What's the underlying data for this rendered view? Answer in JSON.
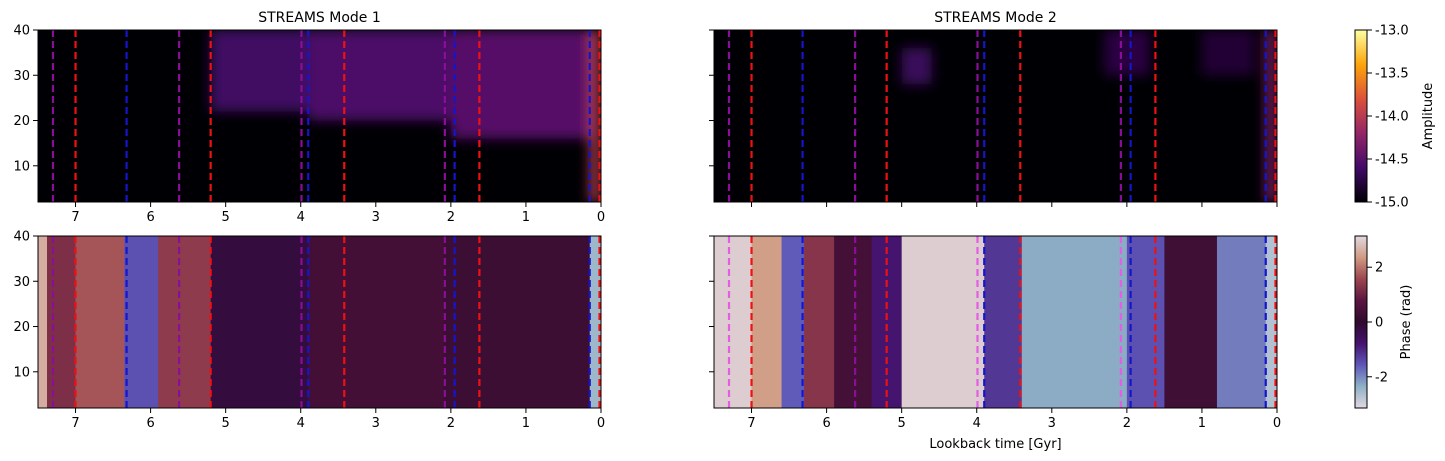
{
  "figure": {
    "xlabel": "Lookback time [Gyr]"
  },
  "colorbars": {
    "amplitude": {
      "label": "Amplitude",
      "ticks": [
        "-13.0",
        "-13.5",
        "-14.0",
        "-14.5",
        "-15.0"
      ],
      "range": [
        -15.0,
        -13.0
      ],
      "colormap": [
        "#000004",
        "#420a68",
        "#932667",
        "#dd513a",
        "#fca50a",
        "#fcffa4"
      ]
    },
    "phase": {
      "label": "Phase (rad)",
      "ticks": [
        "2",
        "0",
        "-2"
      ],
      "range": [
        -3.14,
        3.14
      ],
      "colormap": [
        "#e1d8e1",
        "#8fb1c6",
        "#5e57b8",
        "#45136e",
        "#2f0a2e",
        "#5b1640",
        "#9c4650",
        "#d09a83",
        "#e1d8e1"
      ]
    }
  },
  "event_colors": {
    "red": "#ee1111",
    "blue": "#1515cc",
    "purple": "#8a0e98",
    "violet": "#e45ee4"
  },
  "chart_data": [
    {
      "panel": "amplitude-mode-1",
      "type": "heatmap",
      "title": "STREAMS Mode 1",
      "xlabel": "",
      "ylabel": "",
      "xlim": [
        7.5,
        0
      ],
      "ylim": [
        2,
        40
      ],
      "xticks": [
        "7",
        "6",
        "5",
        "4",
        "3",
        "2",
        "1",
        "0"
      ],
      "yticks": [
        "40",
        "30",
        "20",
        "10"
      ],
      "xticklabels_visible": true,
      "yticklabels_visible": true,
      "quantity": "amplitude",
      "background_level": -15.0,
      "features": [
        {
          "x": [
            5.2,
            3.9
          ],
          "y": [
            22,
            40
          ],
          "level": -14.62
        },
        {
          "x": [
            3.9,
            2.0
          ],
          "y": [
            20,
            40
          ],
          "level": -14.55
        },
        {
          "x": [
            2.0,
            0.15
          ],
          "y": [
            16,
            40
          ],
          "level": -14.5
        },
        {
          "x": [
            0.15,
            0.02
          ],
          "y": [
            2,
            40
          ],
          "level": -14.0
        }
      ],
      "vlines": [
        {
          "x": 7.3,
          "color": "purple"
        },
        {
          "x": 7.0,
          "color": "red"
        },
        {
          "x": 6.32,
          "color": "blue"
        },
        {
          "x": 5.62,
          "color": "purple"
        },
        {
          "x": 5.2,
          "color": "red"
        },
        {
          "x": 3.99,
          "color": "purple"
        },
        {
          "x": 3.9,
          "color": "blue"
        },
        {
          "x": 3.42,
          "color": "red"
        },
        {
          "x": 2.08,
          "color": "purple"
        },
        {
          "x": 1.95,
          "color": "blue"
        },
        {
          "x": 1.62,
          "color": "red"
        },
        {
          "x": 0.15,
          "color": "blue"
        },
        {
          "x": 0.02,
          "color": "red"
        }
      ]
    },
    {
      "panel": "amplitude-mode-2",
      "type": "heatmap",
      "title": "STREAMS Mode 2",
      "xlabel": "",
      "ylabel": "",
      "xlim": [
        7.5,
        0
      ],
      "ylim": [
        2,
        40
      ],
      "xticks": [
        "7",
        "6",
        "5",
        "4",
        "3",
        "2",
        "1",
        "0"
      ],
      "yticks": [
        "40",
        "30",
        "20",
        "10"
      ],
      "xticklabels_visible": false,
      "yticklabels_visible": false,
      "quantity": "amplitude",
      "background_level": -15.0,
      "features": [
        {
          "x": [
            5.0,
            4.6
          ],
          "y": [
            28,
            36
          ],
          "level": -14.65
        },
        {
          "x": [
            2.3,
            1.7
          ],
          "y": [
            30,
            40
          ],
          "level": -14.75
        },
        {
          "x": [
            1.0,
            0.3
          ],
          "y": [
            30,
            40
          ],
          "level": -14.8
        },
        {
          "x": [
            0.15,
            0.02
          ],
          "y": [
            2,
            40
          ],
          "level": -14.3
        }
      ],
      "vlines": [
        {
          "x": 7.3,
          "color": "purple"
        },
        {
          "x": 7.0,
          "color": "red"
        },
        {
          "x": 6.32,
          "color": "blue"
        },
        {
          "x": 5.62,
          "color": "purple"
        },
        {
          "x": 5.2,
          "color": "red"
        },
        {
          "x": 3.99,
          "color": "purple"
        },
        {
          "x": 3.9,
          "color": "blue"
        },
        {
          "x": 3.42,
          "color": "red"
        },
        {
          "x": 2.08,
          "color": "purple"
        },
        {
          "x": 1.95,
          "color": "blue"
        },
        {
          "x": 1.62,
          "color": "red"
        },
        {
          "x": 0.15,
          "color": "blue"
        },
        {
          "x": 0.02,
          "color": "red"
        }
      ]
    },
    {
      "panel": "phase-mode-1",
      "type": "heatmap",
      "title": "",
      "xlabel": "",
      "ylabel": "",
      "xlim": [
        7.5,
        0
      ],
      "ylim": [
        2,
        40
      ],
      "xticks": [
        "7",
        "6",
        "5",
        "4",
        "3",
        "2",
        "1",
        "0"
      ],
      "yticks": [
        "40",
        "30",
        "20",
        "10"
      ],
      "xticklabels_visible": true,
      "yticklabels_visible": true,
      "quantity": "phase",
      "phase_bands": [
        {
          "x": [
            7.5,
            7.38
          ],
          "phase": 2.6
        },
        {
          "x": [
            7.38,
            7.0
          ],
          "phase": 1.2
        },
        {
          "x": [
            7.0,
            6.35
          ],
          "phase": 1.7
        },
        {
          "x": [
            6.35,
            5.9
          ],
          "phase": -1.5
        },
        {
          "x": [
            5.9,
            5.2
          ],
          "phase": 1.4
        },
        {
          "x": [
            5.2,
            3.9
          ],
          "phase": -0.2
        },
        {
          "x": [
            3.9,
            2.1
          ],
          "phase": 0.35
        },
        {
          "x": [
            2.1,
            0.15
          ],
          "phase": 0.25
        },
        {
          "x": [
            0.15,
            0.0
          ],
          "phase": -2.5
        }
      ],
      "vlines": [
        {
          "x": 7.3,
          "color": "purple"
        },
        {
          "x": 7.0,
          "color": "red"
        },
        {
          "x": 6.32,
          "color": "blue"
        },
        {
          "x": 5.62,
          "color": "purple"
        },
        {
          "x": 5.2,
          "color": "red"
        },
        {
          "x": 3.99,
          "color": "purple"
        },
        {
          "x": 3.9,
          "color": "blue"
        },
        {
          "x": 3.42,
          "color": "red"
        },
        {
          "x": 2.08,
          "color": "purple"
        },
        {
          "x": 1.95,
          "color": "blue"
        },
        {
          "x": 1.62,
          "color": "red"
        },
        {
          "x": 0.15,
          "color": "blue"
        },
        {
          "x": 0.02,
          "color": "red"
        }
      ]
    },
    {
      "panel": "phase-mode-2",
      "type": "heatmap",
      "title": "",
      "xlabel": "Lookback time [Gyr]",
      "ylabel": "",
      "xlim": [
        7.5,
        0
      ],
      "ylim": [
        2,
        40
      ],
      "xticks": [
        "7",
        "6",
        "5",
        "4",
        "3",
        "2",
        "1",
        "0"
      ],
      "yticks": [
        "40",
        "30",
        "20",
        "10"
      ],
      "xticklabels_visible": true,
      "yticklabels_visible": false,
      "quantity": "phase",
      "phase_bands": [
        {
          "x": [
            7.5,
            7.0
          ],
          "phase": 3.0
        },
        {
          "x": [
            7.0,
            6.6
          ],
          "phase": 2.4
        },
        {
          "x": [
            6.6,
            6.3
          ],
          "phase": -1.6
        },
        {
          "x": [
            6.3,
            5.9
          ],
          "phase": 1.3
        },
        {
          "x": [
            5.9,
            5.4
          ],
          "phase": 0.4
        },
        {
          "x": [
            5.4,
            5.0
          ],
          "phase": -0.8
        },
        {
          "x": [
            5.0,
            3.9
          ],
          "phase": 3.0
        },
        {
          "x": [
            3.9,
            3.4
          ],
          "phase": -1.2
        },
        {
          "x": [
            3.4,
            2.0
          ],
          "phase": -2.3
        },
        {
          "x": [
            2.0,
            1.5
          ],
          "phase": -1.5
        },
        {
          "x": [
            1.5,
            0.8
          ],
          "phase": 0.3
        },
        {
          "x": [
            0.8,
            0.15
          ],
          "phase": -1.9
        },
        {
          "x": [
            0.15,
            0.0
          ],
          "phase": -2.7
        }
      ],
      "vlines": [
        {
          "x": 7.3,
          "color": "violet"
        },
        {
          "x": 7.0,
          "color": "red"
        },
        {
          "x": 6.32,
          "color": "blue"
        },
        {
          "x": 5.62,
          "color": "purple"
        },
        {
          "x": 5.2,
          "color": "red"
        },
        {
          "x": 3.99,
          "color": "violet"
        },
        {
          "x": 3.9,
          "color": "blue"
        },
        {
          "x": 3.42,
          "color": "red"
        },
        {
          "x": 2.08,
          "color": "violet"
        },
        {
          "x": 1.95,
          "color": "blue"
        },
        {
          "x": 1.62,
          "color": "red"
        },
        {
          "x": 0.15,
          "color": "blue"
        },
        {
          "x": 0.02,
          "color": "red"
        }
      ]
    }
  ]
}
